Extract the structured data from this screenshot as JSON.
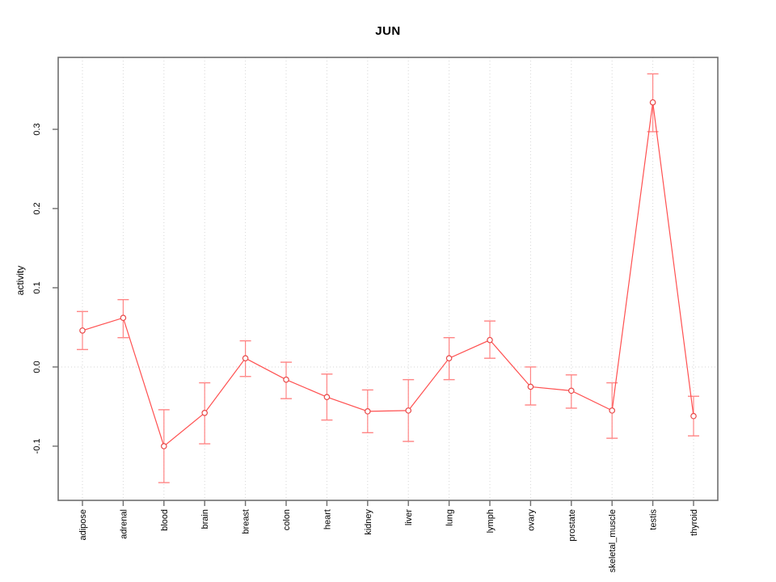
{
  "title": "JUN",
  "ylabel": "activity",
  "colors": {
    "series_line": "#ff5050",
    "error_bar": "#ff8585",
    "point_stroke": "#e84848",
    "point_fill": "#ffffff",
    "grid": "#d6d6d6",
    "axis": "#6e6e6e",
    "text": "#000000",
    "background": "#ffffff"
  },
  "chart_data": {
    "type": "line",
    "title": "JUN",
    "xlabel": "",
    "ylabel": "activity",
    "legend": "none",
    "grid": "dotted vertical gridline at each category plus dotted horizontal line at 0.0",
    "categories": [
      "adipose",
      "adrenal",
      "blood",
      "brain",
      "breast",
      "colon",
      "heart",
      "kidney",
      "liver",
      "lung",
      "lymph",
      "ovary",
      "prostate",
      "skeletal_muscle",
      "testis",
      "thyroid"
    ],
    "series": [
      {
        "name": "activity",
        "values": [
          0.046,
          0.062,
          -0.1,
          -0.058,
          0.011,
          -0.016,
          -0.038,
          -0.056,
          -0.055,
          0.011,
          0.034,
          -0.025,
          -0.03,
          -0.055,
          0.334,
          -0.062
        ],
        "error_low": [
          0.022,
          0.037,
          -0.146,
          -0.097,
          -0.012,
          -0.04,
          -0.067,
          -0.083,
          -0.094,
          -0.016,
          0.011,
          -0.048,
          -0.052,
          -0.09,
          0.297,
          -0.087
        ],
        "error_high": [
          0.07,
          0.085,
          -0.054,
          -0.02,
          0.033,
          0.006,
          -0.009,
          -0.029,
          -0.016,
          0.037,
          0.058,
          0.0,
          -0.01,
          -0.02,
          0.37,
          -0.037
        ]
      }
    ],
    "y_ticks": [
      -0.1,
      0.0,
      0.1,
      0.2,
      0.3
    ],
    "y_tick_labels": [
      "-0.1",
      "0.0",
      "0.1",
      "0.2",
      "0.3"
    ],
    "ylim": [
      -0.1684,
      0.3908
    ]
  }
}
